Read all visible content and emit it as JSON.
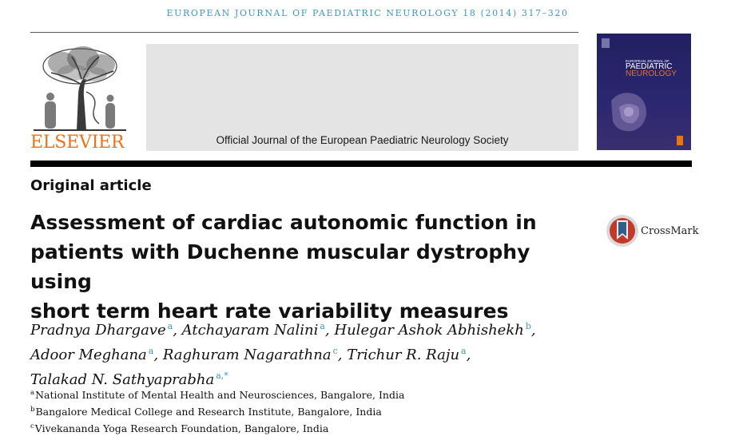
{
  "header": {
    "running_head": "EUROPEAN JOURNAL OF PAEDIATRIC NEUROLOGY 18 (2014) 317–320",
    "publisher_name": "ELSEVIER",
    "society_line": "Official Journal of the European Paediatric Neurology Society",
    "cover": {
      "small_line": "EUROPEAN JOURNAL OF",
      "title_line1": "PAEDIATRIC",
      "title_line2": "NEUROLOGY"
    }
  },
  "article": {
    "type": "Original article",
    "title_lines": [
      "Assessment of cardiac autonomic function in",
      "patients with Duchenne muscular dystrophy using",
      "short term heart rate variability measures"
    ],
    "crossmark_label": "CrossMark",
    "authors": [
      {
        "name": "Pradnya Dhargave",
        "sup": "a"
      },
      {
        "name": "Atchayaram Nalini",
        "sup": "a"
      },
      {
        "name": "Hulegar Ashok Abhishekh",
        "sup": "b"
      },
      {
        "name": "Adoor Meghana",
        "sup": "a"
      },
      {
        "name": "Raghuram Nagarathna",
        "sup": "c"
      },
      {
        "name": "Trichur R. Raju",
        "sup": "a"
      },
      {
        "name": "Talakad N. Sathyaprabha",
        "sup": "a,*"
      }
    ],
    "affiliations": [
      {
        "sup": "a",
        "text": "National Institute of Mental Health and Neurosciences, Bangalore, India"
      },
      {
        "sup": "b",
        "text": "Bangalore Medical College and Research Institute, Bangalore, India"
      },
      {
        "sup": "c",
        "text": "Vivekananda Yoga Research Foundation, Bangalore, India"
      }
    ]
  },
  "colors": {
    "running_head": "#3a97bf",
    "elsevier_orange": "#e8731a",
    "banner_gray": "#e4e4e4",
    "cover_navy": "#232060",
    "crossmark_red": "#c0392b"
  }
}
